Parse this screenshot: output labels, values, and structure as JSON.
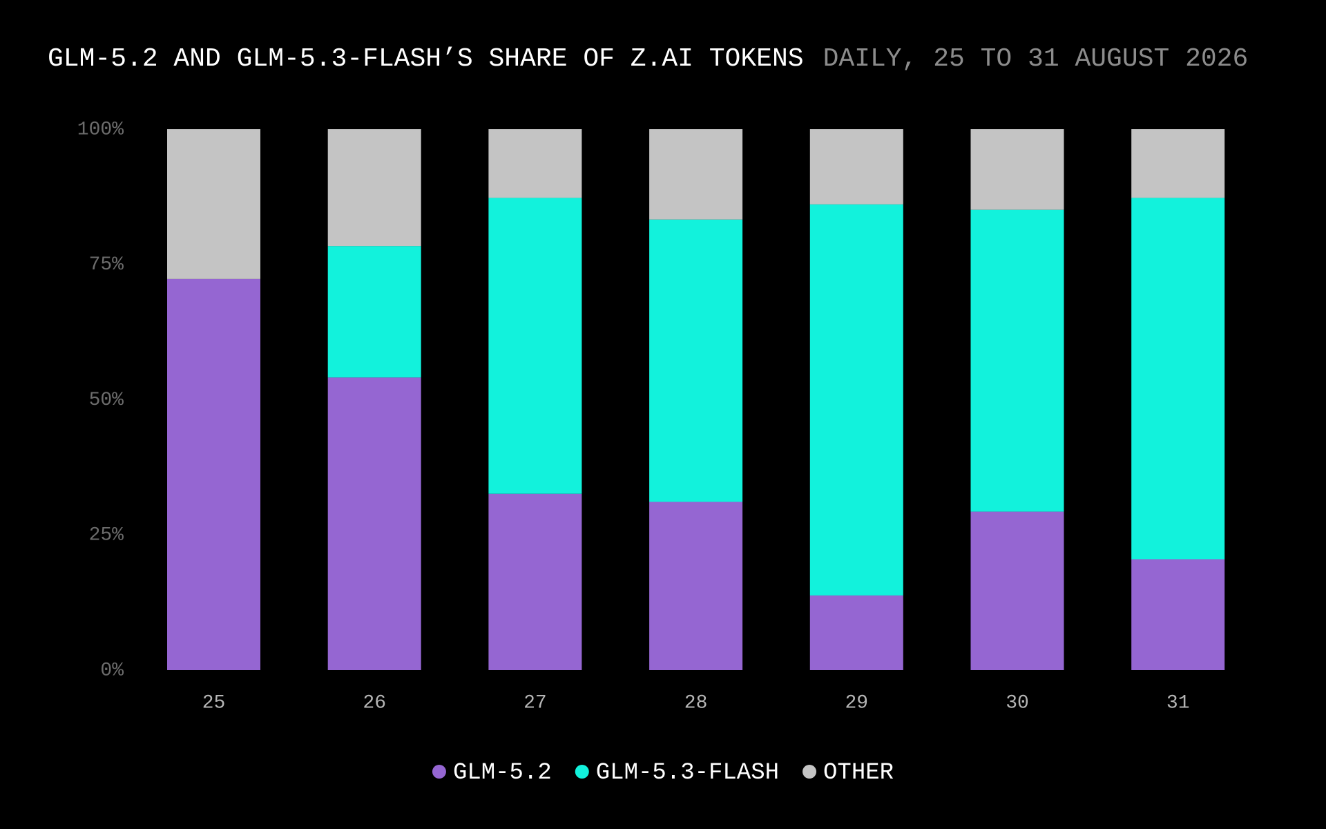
{
  "chart_data": {
    "type": "stacked-bar",
    "title": "GLM-5.2 AND GLM-5.3-FLASH’S SHARE OF Z.AI TOKENS",
    "subtitle": "DAILY, 25 TO 31 AUGUST 2026",
    "categories": [
      "25",
      "26",
      "27",
      "28",
      "29",
      "30",
      "31"
    ],
    "series": [
      {
        "name": "GLM-5.2",
        "color": "#9566d2",
        "values": [
          72.3,
          54.1,
          32.6,
          31.1,
          13.8,
          29.3,
          20.5
        ]
      },
      {
        "name": "GLM-5.3-FLASH",
        "color": "#12f2dc",
        "values": [
          0,
          24.3,
          54.7,
          52.2,
          72.3,
          55.8,
          66.8
        ]
      },
      {
        "name": "OTHER",
        "color": "#c4c4c4",
        "values": [
          27.7,
          21.6,
          12.7,
          16.7,
          13.9,
          14.9,
          12.7
        ]
      }
    ],
    "ylim": [
      0,
      100
    ],
    "yticks": [
      {
        "value": 0,
        "label": "0%"
      },
      {
        "value": 25,
        "label": "25%"
      },
      {
        "value": 50,
        "label": "50%"
      },
      {
        "value": 75,
        "label": "75%"
      },
      {
        "value": 100,
        "label": "100%"
      }
    ],
    "grid": false
  }
}
